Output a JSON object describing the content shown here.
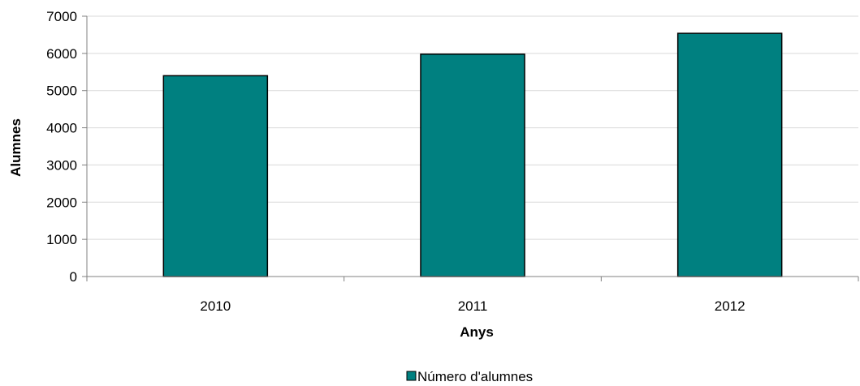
{
  "chart_data": {
    "type": "bar",
    "title": "",
    "xlabel": "Anys",
    "ylabel": "Alumnes",
    "categories": [
      "2010",
      "2011",
      "2012"
    ],
    "series": [
      {
        "name": "Número d'alumnes",
        "values": [
          5400,
          5980,
          6540
        ]
      }
    ],
    "ylim": [
      0,
      7000
    ],
    "yticks": [
      0,
      1000,
      2000,
      3000,
      4000,
      5000,
      6000,
      7000
    ],
    "grid": true,
    "legend_position": "bottom"
  },
  "colors": {
    "bar_fill": "#008080",
    "bar_stroke": "#000000",
    "grid": "#d9d9d9",
    "axis": "#808080"
  }
}
